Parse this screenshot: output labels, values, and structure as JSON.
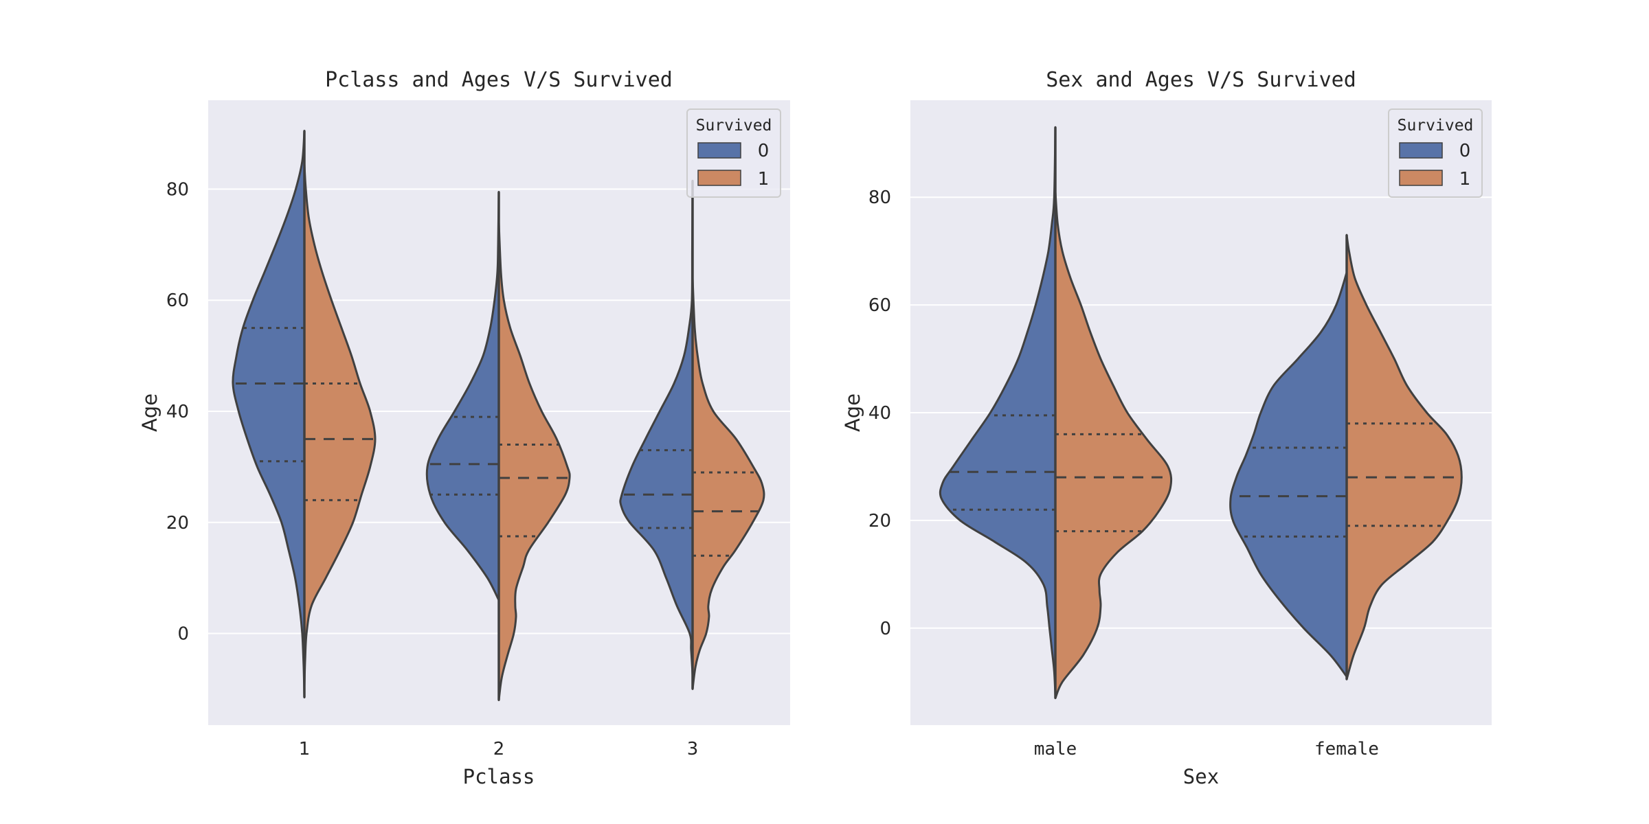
{
  "chart_data": [
    {
      "type": "violin",
      "title": "Pclass and Ages V/S Survived",
      "xlabel": "Pclass",
      "ylabel": "Age",
      "categories": [
        "1",
        "2",
        "3"
      ],
      "ylim": [
        -16.5,
        96
      ],
      "yticks": [
        0,
        20,
        40,
        60,
        80
      ],
      "grid": true,
      "split": true,
      "legend": {
        "title": "Survived",
        "position": "top-right",
        "entries": [
          "0",
          "1"
        ]
      },
      "series": [
        {
          "name": "0",
          "color": "#5873a8",
          "violins": [
            {
              "category": "1",
              "min": -11.5,
              "max": 90.5,
              "q1": 31,
              "median": 45,
              "q3": 55,
              "density": [
                [
                  -11.5,
                  0
                ],
                [
                  -6,
                  0.01
                ],
                [
                  0,
                  0.03
                ],
                [
                  5,
                  0.07
                ],
                [
                  10,
                  0.13
                ],
                [
                  15,
                  0.22
                ],
                [
                  20,
                  0.32
                ],
                [
                  25,
                  0.48
                ],
                [
                  30,
                  0.66
                ],
                [
                  35,
                  0.8
                ],
                [
                  40,
                  0.92
                ],
                [
                  45,
                  1.0
                ],
                [
                  50,
                  0.95
                ],
                [
                  55,
                  0.86
                ],
                [
                  60,
                  0.72
                ],
                [
                  65,
                  0.56
                ],
                [
                  70,
                  0.4
                ],
                [
                  75,
                  0.25
                ],
                [
                  80,
                  0.12
                ],
                [
                  85,
                  0.03
                ],
                [
                  90.5,
                  0
                ]
              ]
            },
            {
              "category": "2",
              "min": 6,
              "max": 79.5,
              "q1": 25,
              "median": 30.5,
              "q3": 39,
              "density": [
                [
                  6,
                  0
                ],
                [
                  10,
                  0.16
                ],
                [
                  15,
                  0.44
                ],
                [
                  20,
                  0.76
                ],
                [
                  25,
                  0.96
                ],
                [
                  30,
                  1.0
                ],
                [
                  35,
                  0.85
                ],
                [
                  40,
                  0.62
                ],
                [
                  45,
                  0.4
                ],
                [
                  50,
                  0.22
                ],
                [
                  55,
                  0.12
                ],
                [
                  60,
                  0.06
                ],
                [
                  65,
                  0.02
                ],
                [
                  70,
                  0.01
                ],
                [
                  79.5,
                  0
                ]
              ]
            },
            {
              "category": "3",
              "min": -7.5,
              "max": 81.5,
              "q1": 19,
              "median": 25,
              "q3": 33,
              "density": [
                [
                  -7.5,
                  0
                ],
                [
                  -3,
                  0.02
                ],
                [
                  0,
                  0.04
                ],
                [
                  5,
                  0.22
                ],
                [
                  10,
                  0.37
                ],
                [
                  15,
                  0.54
                ],
                [
                  20,
                  0.88
                ],
                [
                  23,
                  1.0
                ],
                [
                  25,
                  0.99
                ],
                [
                  30,
                  0.85
                ],
                [
                  35,
                  0.66
                ],
                [
                  40,
                  0.46
                ],
                [
                  45,
                  0.26
                ],
                [
                  50,
                  0.12
                ],
                [
                  55,
                  0.05
                ],
                [
                  60,
                  0.01
                ],
                [
                  70,
                  0.005
                ],
                [
                  81.5,
                  0
                ]
              ]
            }
          ]
        },
        {
          "name": "1",
          "color": "#cc8963",
          "violins": [
            {
              "category": "1",
              "min": -9.5,
              "max": 84.5,
              "q1": 24,
              "median": 35,
              "q3": 45,
              "density": [
                [
                  -9.5,
                  0
                ],
                [
                  -5,
                  0.01
                ],
                [
                  0,
                  0.03
                ],
                [
                  5,
                  0.1
                ],
                [
                  10,
                  0.3
                ],
                [
                  15,
                  0.5
                ],
                [
                  20,
                  0.68
                ],
                [
                  25,
                  0.8
                ],
                [
                  30,
                  0.92
                ],
                [
                  35,
                  0.99
                ],
                [
                  40,
                  0.92
                ],
                [
                  45,
                  0.78
                ],
                [
                  50,
                  0.66
                ],
                [
                  55,
                  0.52
                ],
                [
                  60,
                  0.38
                ],
                [
                  65,
                  0.25
                ],
                [
                  70,
                  0.14
                ],
                [
                  75,
                  0.06
                ],
                [
                  80,
                  0.02
                ],
                [
                  84.5,
                  0
                ]
              ]
            },
            {
              "category": "2",
              "min": -12,
              "max": 74,
              "q1": 17.5,
              "median": 28,
              "q3": 34,
              "density": [
                [
                  -12,
                  0
                ],
                [
                  -8,
                  0.04
                ],
                [
                  -4,
                  0.12
                ],
                [
                  0,
                  0.21
                ],
                [
                  3,
                  0.24
                ],
                [
                  5,
                  0.23
                ],
                [
                  8,
                  0.24
                ],
                [
                  12,
                  0.34
                ],
                [
                  15,
                  0.42
                ],
                [
                  20,
                  0.69
                ],
                [
                  25,
                  0.93
                ],
                [
                  28,
                  0.99
                ],
                [
                  30,
                  0.96
                ],
                [
                  35,
                  0.81
                ],
                [
                  40,
                  0.6
                ],
                [
                  45,
                  0.43
                ],
                [
                  50,
                  0.3
                ],
                [
                  55,
                  0.16
                ],
                [
                  60,
                  0.07
                ],
                [
                  65,
                  0.03
                ],
                [
                  74,
                  0
                ]
              ]
            },
            {
              "category": "3",
              "min": -10,
              "max": 64,
              "q1": 14,
              "median": 22,
              "q3": 29,
              "density": [
                [
                  -10,
                  0
                ],
                [
                  -6,
                  0.04
                ],
                [
                  -3,
                  0.1
                ],
                [
                  0,
                  0.19
                ],
                [
                  3,
                  0.23
                ],
                [
                  5,
                  0.22
                ],
                [
                  8,
                  0.27
                ],
                [
                  12,
                  0.43
                ],
                [
                  15,
                  0.6
                ],
                [
                  20,
                  0.84
                ],
                [
                  24,
                  0.99
                ],
                [
                  27,
                  0.97
                ],
                [
                  30,
                  0.85
                ],
                [
                  35,
                  0.61
                ],
                [
                  40,
                  0.29
                ],
                [
                  45,
                  0.14
                ],
                [
                  50,
                  0.07
                ],
                [
                  55,
                  0.03
                ],
                [
                  64,
                  0
                ]
              ]
            }
          ]
        }
      ]
    },
    {
      "type": "violin",
      "title": "Sex and Ages V/S Survived",
      "xlabel": "Sex",
      "ylabel": "Age",
      "categories": [
        "male",
        "female"
      ],
      "ylim": [
        -18,
        98
      ],
      "yticks": [
        0,
        20,
        40,
        60,
        80
      ],
      "grid": true,
      "split": true,
      "legend": {
        "title": "Survived",
        "position": "top-right",
        "entries": [
          "0",
          "1"
        ]
      },
      "series": [
        {
          "name": "0",
          "color": "#5873a8",
          "violins": [
            {
              "category": "male",
              "min": -12.5,
              "max": 93,
              "q1": 22,
              "median": 29,
              "q3": 39.5,
              "density": [
                [
                  -12.5,
                  0
                ],
                [
                  -8,
                  0.01
                ],
                [
                  -4,
                  0.03
                ],
                [
                  0,
                  0.05
                ],
                [
                  4,
                  0.07
                ],
                [
                  8,
                  0.1
                ],
                [
                  12,
                  0.24
                ],
                [
                  16,
                  0.52
                ],
                [
                  20,
                  0.82
                ],
                [
                  24,
                  0.98
                ],
                [
                  27,
                  0.97
                ],
                [
                  30,
                  0.88
                ],
                [
                  35,
                  0.72
                ],
                [
                  40,
                  0.56
                ],
                [
                  45,
                  0.43
                ],
                [
                  50,
                  0.32
                ],
                [
                  55,
                  0.24
                ],
                [
                  60,
                  0.17
                ],
                [
                  65,
                  0.11
                ],
                [
                  70,
                  0.06
                ],
                [
                  75,
                  0.03
                ],
                [
                  80,
                  0.01
                ],
                [
                  93,
                  0
                ]
              ]
            },
            {
              "category": "female",
              "min": -9,
              "max": 66,
              "q1": 17,
              "median": 24.5,
              "q3": 33.5,
              "density": [
                [
                  -9,
                  0
                ],
                [
                  -5,
                  0.14
                ],
                [
                  0,
                  0.37
                ],
                [
                  5,
                  0.57
                ],
                [
                  10,
                  0.74
                ],
                [
                  15,
                  0.86
                ],
                [
                  20,
                  0.98
                ],
                [
                  24,
                  1.0
                ],
                [
                  28,
                  0.95
                ],
                [
                  32,
                  0.87
                ],
                [
                  36,
                  0.8
                ],
                [
                  40,
                  0.74
                ],
                [
                  45,
                  0.63
                ],
                [
                  50,
                  0.42
                ],
                [
                  55,
                  0.22
                ],
                [
                  60,
                  0.09
                ],
                [
                  66,
                  0
                ]
              ]
            }
          ]
        },
        {
          "name": "1",
          "color": "#cc8963",
          "violins": [
            {
              "category": "male",
              "min": -13,
              "max": 81,
              "q1": 18,
              "median": 28,
              "q3": 36,
              "density": [
                [
                  -13,
                  0
                ],
                [
                  -10,
                  0.06
                ],
                [
                  -5,
                  0.24
                ],
                [
                  0,
                  0.36
                ],
                [
                  4,
                  0.39
                ],
                [
                  7,
                  0.38
                ],
                [
                  10,
                  0.39
                ],
                [
                  14,
                  0.53
                ],
                [
                  18,
                  0.75
                ],
                [
                  22,
                  0.9
                ],
                [
                  26,
                  0.99
                ],
                [
                  30,
                  0.97
                ],
                [
                  35,
                  0.79
                ],
                [
                  40,
                  0.62
                ],
                [
                  45,
                  0.5
                ],
                [
                  50,
                  0.39
                ],
                [
                  55,
                  0.3
                ],
                [
                  60,
                  0.22
                ],
                [
                  65,
                  0.13
                ],
                [
                  70,
                  0.06
                ],
                [
                  75,
                  0.02
                ],
                [
                  81,
                  0
                ]
              ]
            },
            {
              "category": "female",
              "min": -9.5,
              "max": 73,
              "q1": 19,
              "median": 28,
              "q3": 38,
              "density": [
                [
                  -9.5,
                  0
                ],
                [
                  -5,
                  0.06
                ],
                [
                  0,
                  0.15
                ],
                [
                  4,
                  0.2
                ],
                [
                  8,
                  0.3
                ],
                [
                  12,
                  0.52
                ],
                [
                  16,
                  0.74
                ],
                [
                  20,
                  0.87
                ],
                [
                  24,
                  0.96
                ],
                [
                  28,
                  0.99
                ],
                [
                  32,
                  0.96
                ],
                [
                  36,
                  0.86
                ],
                [
                  40,
                  0.69
                ],
                [
                  45,
                  0.52
                ],
                [
                  50,
                  0.41
                ],
                [
                  55,
                  0.29
                ],
                [
                  60,
                  0.17
                ],
                [
                  65,
                  0.07
                ],
                [
                  70,
                  0.02
                ],
                [
                  73,
                  0
                ]
              ]
            }
          ]
        }
      ]
    }
  ]
}
